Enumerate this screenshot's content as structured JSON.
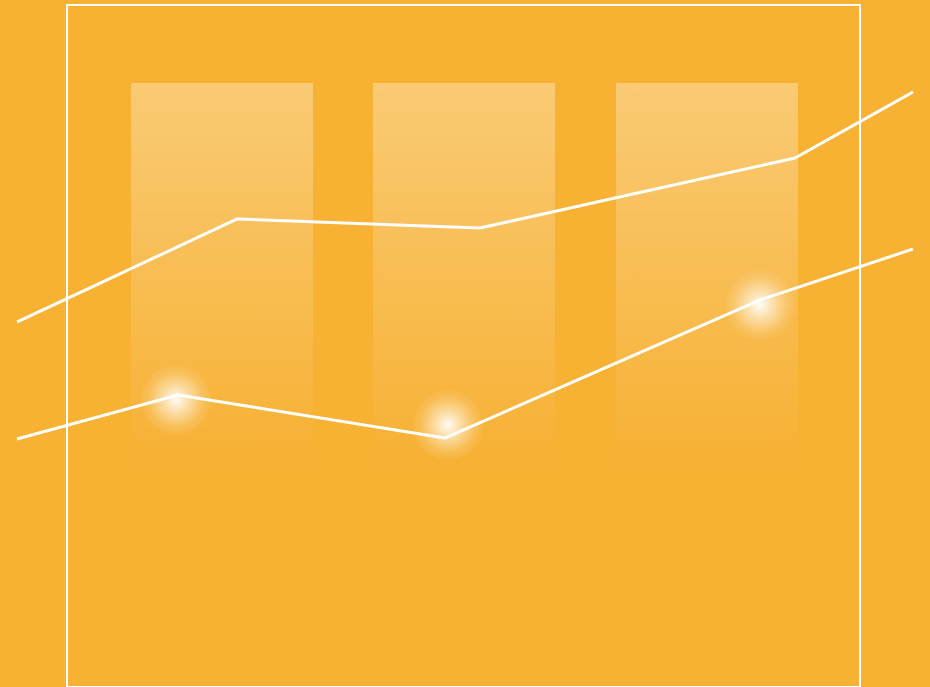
{
  "illustration": {
    "name": "growth-chart-graphic",
    "colors": {
      "background": "#F7B133",
      "stroke": "#FFFFFF"
    },
    "columns": 3,
    "lines": 2,
    "highlights": 3
  }
}
